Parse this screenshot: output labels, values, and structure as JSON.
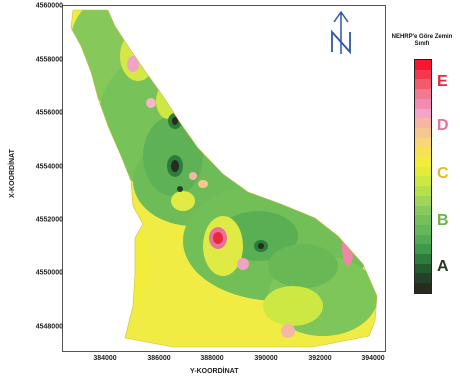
{
  "map": {
    "y_axis_label": "X-KOORDİNAT",
    "x_axis_label": "Y-KOORDİNAT",
    "y_ticks": [
      "4560000",
      "4558000",
      "4556000",
      "4554000",
      "4552000",
      "4550000",
      "4548000"
    ],
    "x_ticks": [
      "384000",
      "386000",
      "388000",
      "390000",
      "392000",
      "394000"
    ]
  },
  "north_arrow": {
    "label": "N",
    "icon": "north-arrow-icon",
    "color": "#2f55a4"
  },
  "legend": {
    "title": "NEHRP'e Göre Zemin Sınıfı",
    "classes": [
      {
        "label": "E",
        "color": "#e8283c"
      },
      {
        "label": "D",
        "color": "#e8709a"
      },
      {
        "label": "C",
        "color": "#e8b820"
      },
      {
        "label": "B",
        "color": "#6db34a"
      },
      {
        "label": "A",
        "color": "#2a3a22"
      }
    ],
    "scale_colors": [
      "#f8152e",
      "#f43850",
      "#f25a6e",
      "#f07a92",
      "#f08cb2",
      "#f4a4c8",
      "#f6b6a6",
      "#f8c690",
      "#f9d676",
      "#f7e254",
      "#f2ec3a",
      "#e4ec3a",
      "#cde842",
      "#b6df4c",
      "#9fd55a",
      "#88cb5c",
      "#74c15c",
      "#64b75c",
      "#52aa52",
      "#3c9a48",
      "#2c7c3c",
      "#245c30",
      "#26402a",
      "#2a2a1e"
    ]
  }
}
